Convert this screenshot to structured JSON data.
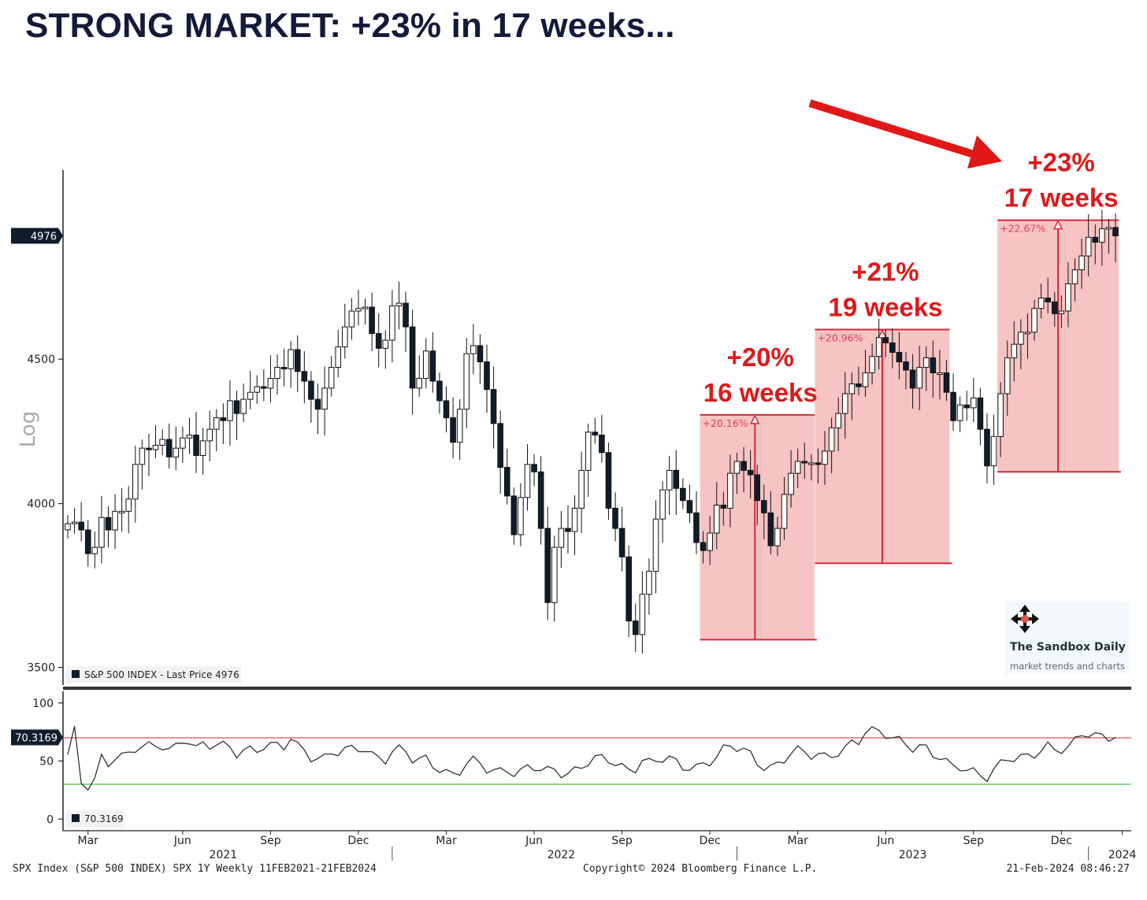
{
  "title": "STRONG MARKET: +23% in 17 weeks...",
  "chart_data": {
    "type": "candlestick",
    "scale": "log",
    "ylim": [
      3450,
      5250
    ],
    "y_ticks": [
      3500,
      4000,
      4500
    ],
    "y_axis_label": "Log",
    "last_price_label": "4976",
    "legend": "S&P 500 INDEX - Last Price 4976",
    "x_month_ticks": [
      {
        "label": "Mar",
        "week": 3
      },
      {
        "label": "Jun",
        "week": 17
      },
      {
        "label": "Sep",
        "week": 30
      },
      {
        "label": "Dec",
        "week": 43
      },
      {
        "label": "Mar",
        "week": 56
      },
      {
        "label": "Jun",
        "week": 69
      },
      {
        "label": "Sep",
        "week": 82
      },
      {
        "label": "Dec",
        "week": 95
      },
      {
        "label": "Mar",
        "week": 108
      },
      {
        "label": "Jun",
        "week": 121
      },
      {
        "label": "Sep",
        "week": 134
      },
      {
        "label": "Dec",
        "week": 147
      },
      {
        "label": "",
        "week": 156
      }
    ],
    "x_years": [
      {
        "label": "2021",
        "week": 23
      },
      {
        "label": "2022",
        "week": 73
      },
      {
        "label": "2023",
        "week": 125
      },
      {
        "label": "2024",
        "week": 156
      }
    ],
    "weekly_close": [
      3935,
      3940,
      3915,
      3840,
      3860,
      3955,
      3915,
      3975,
      3975,
      4015,
      4130,
      4185,
      4180,
      4195,
      4215,
      4155,
      4185,
      4220,
      4230,
      4160,
      4210,
      4250,
      4290,
      4280,
      4350,
      4305,
      4355,
      4380,
      4400,
      4395,
      4430,
      4470,
      4465,
      4535,
      4455,
      4420,
      4355,
      4320,
      4395,
      4470,
      4545,
      4620,
      4680,
      4690,
      4695,
      4595,
      4540,
      4570,
      4700,
      4710,
      4620,
      4395,
      4430,
      4530,
      4420,
      4350,
      4290,
      4205,
      4320,
      4520,
      4550,
      4490,
      4390,
      4270,
      4120,
      4025,
      3900,
      4020,
      4130,
      4105,
      3920,
      3690,
      3860,
      3920,
      3910,
      3985,
      4110,
      4240,
      4230,
      4170,
      3985,
      3920,
      3830,
      3635,
      3595,
      3715,
      3785,
      3950,
      4045,
      4110,
      4050,
      4010,
      3970,
      3875,
      3850,
      3905,
      3995,
      3985,
      4100,
      4140,
      4110,
      4095,
      4010,
      3970,
      3865,
      3920,
      4030,
      4100,
      4140,
      4135,
      4135,
      4130,
      4175,
      4255,
      4305,
      4375,
      4410,
      4400,
      4450,
      4510,
      4580,
      4560,
      4525,
      4490,
      4460,
      4395,
      4470,
      4505,
      4450,
      4450,
      4380,
      4280,
      4335,
      4325,
      4360,
      4250,
      4125,
      4225,
      4375,
      4505,
      4555,
      4600,
      4600,
      4690,
      4730,
      4715,
      4670,
      4680,
      4785,
      4840,
      4895,
      4970,
      4950,
      5005,
      5010,
      4976
    ],
    "annotations": [
      {
        "pct": "+20%",
        "weeks": "16 weeks",
        "box_label": "+20.16%",
        "week_start": 94,
        "week_end": 110,
        "low": 3580,
        "high": 4300
      },
      {
        "pct": "+21%",
        "weeks": "19 weeks",
        "box_label": "+20.96%",
        "week_start": 111,
        "week_end": 130,
        "low": 3810,
        "high": 4610
      },
      {
        "pct": "+23%",
        "weeks": "17 weeks",
        "box_label": "+22.67%",
        "week_start": 138,
        "week_end": 155,
        "low": 4105,
        "high": 5040
      }
    ],
    "indicator": {
      "type": "line",
      "label": "70.3169",
      "value": 70.3169,
      "ylim": [
        -10,
        110
      ],
      "y_ticks": [
        0,
        50,
        100
      ],
      "upper_band": 70,
      "lower_band": 30,
      "upper_band_color": "#e05050",
      "lower_band_color": "#4cbb4c"
    }
  },
  "footer": {
    "left": "SPX Index (S&P 500 INDEX) SPX 1Y  Weekly 11FEB2021-21FEB2024",
    "center": "Copyright© 2024 Bloomberg Finance L.P.",
    "right": "21-Feb-2024 08:46:27"
  },
  "watermark": {
    "name": "The Sandbox Daily",
    "tagline": "market trends and charts",
    "icon": "move-arrows-icon"
  },
  "colors": {
    "title": "#141a3a",
    "annotation_red": "#e01818",
    "box_fill": "#f7b9b9",
    "candle_down": "#0f1c2c",
    "candle_up": "#ffffff"
  }
}
